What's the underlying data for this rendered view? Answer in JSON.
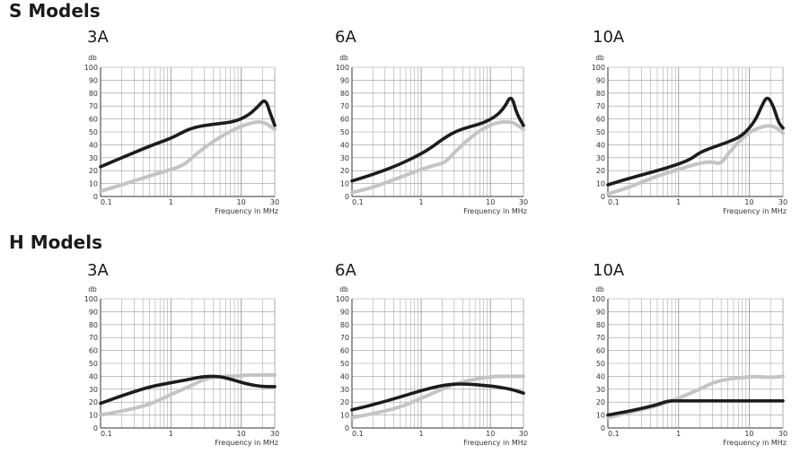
{
  "sections": [
    {
      "title": "S Models"
    },
    {
      "title": "H Models"
    }
  ],
  "colors": {
    "series_dark": "#1c1c1c",
    "series_light": "#c4c4c4",
    "grid": "#9a9a9a",
    "axis": "#333333"
  },
  "chart_data": [
    {
      "type": "line",
      "title": "3A",
      "ylabel": "db",
      "xlabel": "Frequency in MHz",
      "xscale": "log",
      "xlim": [
        0.1,
        30
      ],
      "ylim": [
        0,
        100
      ],
      "xticks": [
        "0.1",
        "1",
        "10",
        "30"
      ],
      "yticks": [
        "0",
        "10",
        "20",
        "30",
        "40",
        "50",
        "60",
        "70",
        "80",
        "90",
        "100"
      ],
      "series": [
        {
          "color": "#1c1c1c",
          "points": [
            [
              0.1,
              23
            ],
            [
              0.2,
              30
            ],
            [
              0.5,
              39
            ],
            [
              1,
              45
            ],
            [
              1.5,
              50
            ],
            [
              2,
              53
            ],
            [
              3,
              55
            ],
            [
              5,
              56.5
            ],
            [
              8,
              58
            ],
            [
              12,
              62
            ],
            [
              17,
              69
            ],
            [
              22,
              76
            ],
            [
              26,
              64
            ],
            [
              30,
              55
            ]
          ]
        },
        {
          "color": "#c4c4c4",
          "points": [
            [
              0.1,
              4
            ],
            [
              0.2,
              9
            ],
            [
              0.5,
              16
            ],
            [
              1,
              21
            ],
            [
              1.5,
              24
            ],
            [
              2,
              30
            ],
            [
              3,
              38
            ],
            [
              5,
              46
            ],
            [
              8,
              52
            ],
            [
              12,
              56
            ],
            [
              17,
              58
            ],
            [
              22,
              57
            ],
            [
              30,
              52
            ]
          ]
        }
      ]
    },
    {
      "type": "line",
      "title": "6A",
      "ylabel": "db",
      "xlabel": "Frequency in MHz",
      "xscale": "log",
      "xlim": [
        0.1,
        30
      ],
      "ylim": [
        0,
        100
      ],
      "xticks": [
        "0.1",
        "1",
        "10",
        "30"
      ],
      "yticks": [
        "0",
        "10",
        "20",
        "30",
        "40",
        "50",
        "60",
        "70",
        "80",
        "90",
        "100"
      ],
      "series": [
        {
          "color": "#1c1c1c",
          "points": [
            [
              0.1,
              12
            ],
            [
              0.2,
              17
            ],
            [
              0.5,
              25
            ],
            [
              1,
              33
            ],
            [
              1.5,
              39
            ],
            [
              2,
              44
            ],
            [
              3,
              50
            ],
            [
              5,
              54
            ],
            [
              8,
              57
            ],
            [
              12,
              62
            ],
            [
              16,
              69
            ],
            [
              20,
              79
            ],
            [
              24,
              64
            ],
            [
              30,
              55
            ]
          ]
        },
        {
          "color": "#c4c4c4",
          "points": [
            [
              0.1,
              3
            ],
            [
              0.2,
              7
            ],
            [
              0.5,
              15
            ],
            [
              1,
              21
            ],
            [
              1.5,
              24
            ],
            [
              2.2,
              26
            ],
            [
              3,
              34
            ],
            [
              5,
              45
            ],
            [
              8,
              53
            ],
            [
              12,
              57
            ],
            [
              17,
              58
            ],
            [
              22,
              57
            ],
            [
              30,
              52
            ]
          ]
        }
      ]
    },
    {
      "type": "line",
      "title": "10A",
      "ylabel": "db",
      "xlabel": "Frequency in MHz",
      "xscale": "log",
      "xlim": [
        0.1,
        30
      ],
      "ylim": [
        0,
        100
      ],
      "xticks": [
        "0.1",
        "1",
        "10",
        "30"
      ],
      "yticks": [
        "0",
        "10",
        "20",
        "30",
        "40",
        "50",
        "60",
        "70",
        "80",
        "90",
        "100"
      ],
      "series": [
        {
          "color": "#1c1c1c",
          "points": [
            [
              0.1,
              9
            ],
            [
              0.2,
              14
            ],
            [
              0.5,
              20
            ],
            [
              1,
              25
            ],
            [
              1.5,
              29
            ],
            [
              2,
              34
            ],
            [
              3,
              38
            ],
            [
              5,
              42
            ],
            [
              8,
              47
            ],
            [
              12,
              58
            ],
            [
              15,
              70
            ],
            [
              18,
              78
            ],
            [
              22,
              70
            ],
            [
              26,
              57
            ],
            [
              30,
              53
            ]
          ]
        },
        {
          "color": "#c4c4c4",
          "points": [
            [
              0.1,
              2
            ],
            [
              0.2,
              7
            ],
            [
              0.5,
              16
            ],
            [
              1,
              21
            ],
            [
              2,
              26
            ],
            [
              3,
              27
            ],
            [
              4,
              25
            ],
            [
              5,
              33
            ],
            [
              7,
              42
            ],
            [
              10,
              50
            ],
            [
              15,
              54
            ],
            [
              20,
              55
            ],
            [
              25,
              53
            ],
            [
              30,
              49
            ]
          ]
        }
      ]
    },
    {
      "type": "line",
      "title": "3A",
      "ylabel": "db",
      "xlabel": "Frequency in MHz",
      "xscale": "log",
      "xlim": [
        0.1,
        30
      ],
      "ylim": [
        0,
        100
      ],
      "xticks": [
        "0.1",
        "1",
        "10",
        "30"
      ],
      "yticks": [
        "0",
        "10",
        "20",
        "30",
        "40",
        "50",
        "60",
        "70",
        "80",
        "90",
        "100"
      ],
      "series": [
        {
          "color": "#1c1c1c",
          "points": [
            [
              0.1,
              19
            ],
            [
              0.2,
              25
            ],
            [
              0.5,
              32
            ],
            [
              1,
              35
            ],
            [
              2,
              38
            ],
            [
              3,
              40
            ],
            [
              5,
              40
            ],
            [
              8,
              37
            ],
            [
              12,
              34
            ],
            [
              20,
              32
            ],
            [
              30,
              32
            ]
          ]
        },
        {
          "color": "#c4c4c4",
          "points": [
            [
              0.1,
              10
            ],
            [
              0.2,
              13
            ],
            [
              0.5,
              18
            ],
            [
              1,
              26
            ],
            [
              2,
              33
            ],
            [
              3,
              38
            ],
            [
              5,
              40
            ],
            [
              8,
              40
            ],
            [
              12,
              41
            ],
            [
              20,
              41
            ],
            [
              30,
              41
            ]
          ]
        }
      ]
    },
    {
      "type": "line",
      "title": "6A",
      "ylabel": "db",
      "xlabel": "Frequency in MHz",
      "xscale": "log",
      "xlim": [
        0.1,
        30
      ],
      "ylim": [
        0,
        100
      ],
      "xticks": [
        "0.1",
        "1",
        "10",
        "30"
      ],
      "yticks": [
        "0",
        "10",
        "20",
        "30",
        "40",
        "50",
        "60",
        "70",
        "80",
        "90",
        "100"
      ],
      "series": [
        {
          "color": "#1c1c1c",
          "points": [
            [
              0.1,
              14
            ],
            [
              0.2,
              18
            ],
            [
              0.5,
              24
            ],
            [
              1,
              29
            ],
            [
              2,
              33
            ],
            [
              3,
              34
            ],
            [
              5,
              34
            ],
            [
              8,
              33
            ],
            [
              12,
              32
            ],
            [
              20,
              30
            ],
            [
              30,
              27
            ]
          ]
        },
        {
          "color": "#c4c4c4",
          "points": [
            [
              0.1,
              8
            ],
            [
              0.2,
              11
            ],
            [
              0.5,
              16
            ],
            [
              1,
              23
            ],
            [
              2,
              30
            ],
            [
              3,
              34
            ],
            [
              5,
              37
            ],
            [
              8,
              39
            ],
            [
              12,
              40
            ],
            [
              20,
              40
            ],
            [
              30,
              40
            ]
          ]
        }
      ]
    },
    {
      "type": "line",
      "title": "10A",
      "ylabel": "db",
      "xlabel": "Frequency in MHz",
      "xscale": "log",
      "xlim": [
        0.1,
        30
      ],
      "ylim": [
        0,
        100
      ],
      "xticks": [
        "0.1",
        "1",
        "10",
        "30"
      ],
      "yticks": [
        "0",
        "10",
        "20",
        "30",
        "40",
        "50",
        "60",
        "70",
        "80",
        "90",
        "100"
      ],
      "series": [
        {
          "color": "#1c1c1c",
          "points": [
            [
              0.1,
              10
            ],
            [
              0.2,
              13
            ],
            [
              0.5,
              18
            ],
            [
              0.7,
              21
            ],
            [
              1,
              21
            ],
            [
              2,
              21
            ],
            [
              5,
              21
            ],
            [
              10,
              21
            ],
            [
              20,
              21
            ],
            [
              30,
              21
            ]
          ]
        },
        {
          "color": "#c4c4c4",
          "points": [
            [
              0.1,
              8
            ],
            [
              0.2,
              12
            ],
            [
              0.5,
              17
            ],
            [
              1,
              23
            ],
            [
              2,
              30
            ],
            [
              3,
              35
            ],
            [
              5,
              38
            ],
            [
              8,
              39
            ],
            [
              12,
              40
            ],
            [
              20,
              39
            ],
            [
              30,
              40
            ]
          ]
        }
      ]
    }
  ]
}
